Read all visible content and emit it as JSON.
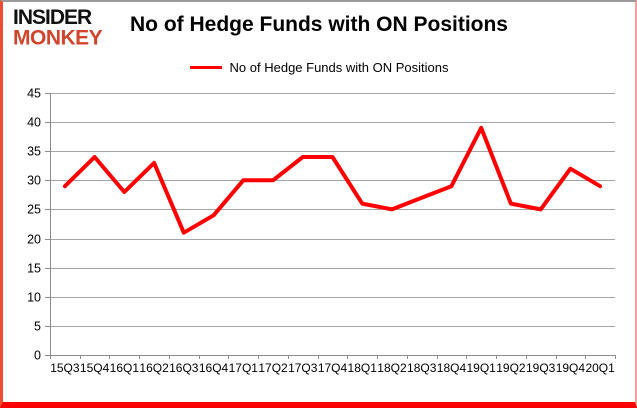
{
  "logo": {
    "line1": "INSIDER",
    "line2": "MONKEY"
  },
  "header": {
    "title": "No of Hedge Funds with ON Positions"
  },
  "legend": {
    "label": "No of Hedge Funds with ON Positions"
  },
  "chart_data": {
    "type": "line",
    "title": "No of Hedge Funds with ON Positions",
    "categories": [
      "15Q3",
      "15Q4",
      "16Q1",
      "16Q2",
      "16Q3",
      "16Q4",
      "17Q1",
      "17Q2",
      "17Q3",
      "17Q4",
      "18Q1",
      "18Q2",
      "18Q3",
      "18Q4",
      "19Q1",
      "19Q2",
      "19Q3",
      "19Q4",
      "20Q1"
    ],
    "series": [
      {
        "name": "No of Hedge Funds with ON Positions",
        "color": "#ff0000",
        "values": [
          29,
          34,
          28,
          33,
          21,
          24,
          30,
          30,
          34,
          34,
          26,
          25,
          27,
          29,
          39,
          26,
          25,
          32,
          29
        ]
      }
    ],
    "xlabel": "",
    "ylabel": "",
    "ylim": [
      0,
      45
    ],
    "ytick_step": 5,
    "grid": true,
    "legend_position": "top-center"
  },
  "colors": {
    "series_line": "#ff0000",
    "gridline": "#a6a6a6",
    "axis": "#8c8c8c",
    "text": "#000000",
    "logo_monkey": "#d0452c"
  }
}
